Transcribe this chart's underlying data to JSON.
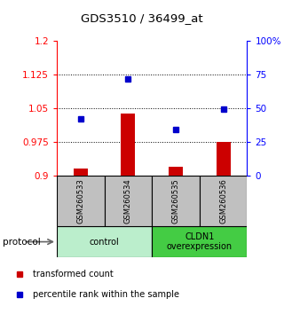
{
  "title": "GDS3510 / 36499_at",
  "samples": [
    "GSM260533",
    "GSM260534",
    "GSM260535",
    "GSM260536"
  ],
  "bar_values": [
    0.916,
    1.038,
    0.921,
    0.976
  ],
  "dot_values": [
    1.027,
    1.115,
    1.003,
    1.048
  ],
  "ylim_left": [
    0.9,
    1.2
  ],
  "ylim_right": [
    0,
    100
  ],
  "yticks_left": [
    0.9,
    0.975,
    1.05,
    1.125,
    1.2
  ],
  "ytick_labels_left": [
    "0.9",
    "0.975",
    "1.05",
    "1.125",
    "1.2"
  ],
  "yticks_right": [
    0,
    25,
    50,
    75,
    100
  ],
  "ytick_labels_right": [
    "0",
    "25",
    "50",
    "75",
    "100%"
  ],
  "bar_color": "#cc0000",
  "dot_color": "#0000cc",
  "protocol_groups": [
    {
      "label": "control",
      "indices": [
        0,
        1
      ],
      "color": "#bbeecc"
    },
    {
      "label": "CLDN1\noverexpression",
      "indices": [
        2,
        3
      ],
      "color": "#44cc44"
    }
  ],
  "protocol_label": "protocol",
  "legend_bar_label": "transformed count",
  "legend_dot_label": "percentile rank within the sample",
  "sample_box_color": "#c0c0c0"
}
